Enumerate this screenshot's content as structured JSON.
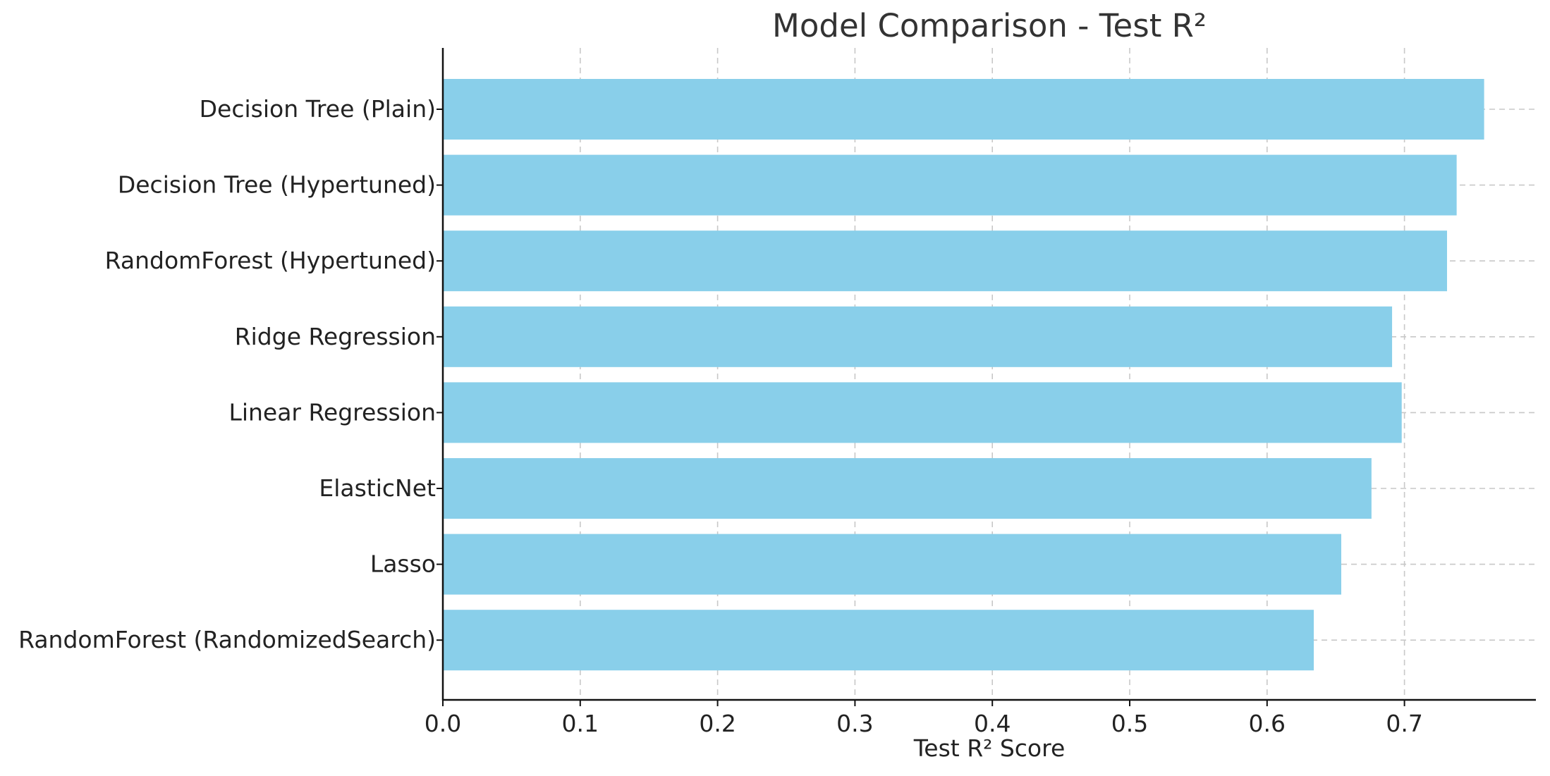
{
  "chart_data": {
    "type": "bar",
    "orientation": "horizontal",
    "title": "Model Comparison - Test R²",
    "xlabel": "Test R² Score",
    "ylabel": "",
    "xlim": [
      0.0,
      0.79
    ],
    "xticks": [
      "0.0",
      "0.1",
      "0.2",
      "0.3",
      "0.4",
      "0.5",
      "0.6",
      "0.7"
    ],
    "grid": true,
    "bar_color": "#89CFEA",
    "categories": [
      "Decision Tree (Plain)",
      "Decision Tree (Hypertuned)",
      "RandomForest (Hypertuned)",
      "Ridge Regression",
      "Linear Regression",
      "ElasticNet",
      "Lasso",
      "RandomForest (RandomizedSearch)"
    ],
    "values": [
      0.758,
      0.738,
      0.731,
      0.691,
      0.698,
      0.676,
      0.654,
      0.634
    ]
  }
}
